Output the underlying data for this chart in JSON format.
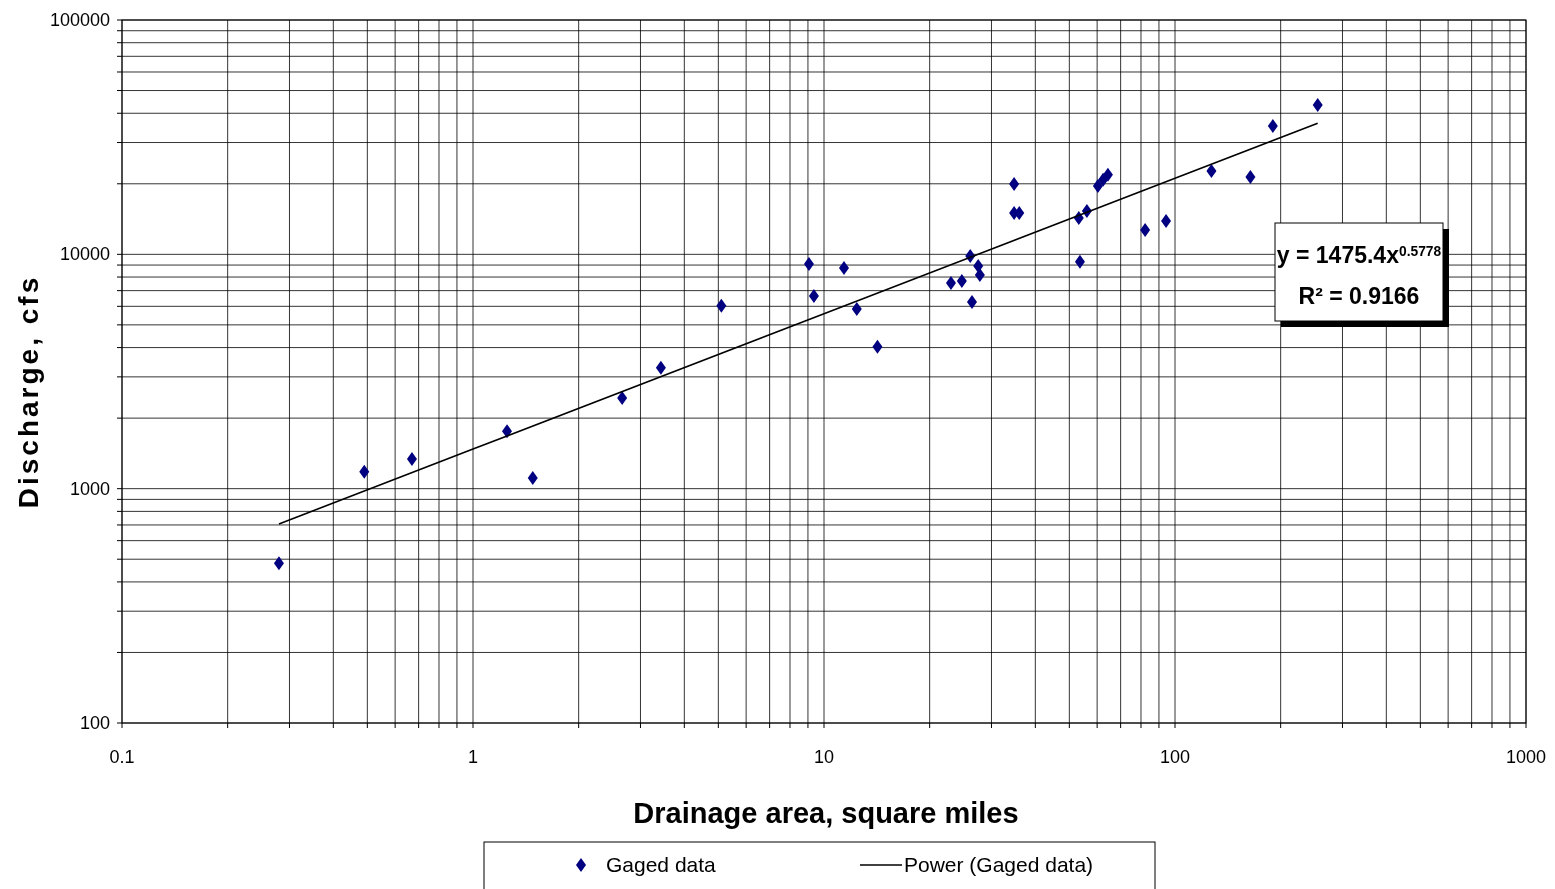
{
  "chart_data": {
    "type": "scatter",
    "xlabel": "Drainage area, square miles",
    "ylabel": "Discharge, cfs",
    "log": "xy",
    "grid": true,
    "legend": "bottom",
    "xlim": [
      0.1,
      1000
    ],
    "ylim": [
      100,
      100000
    ],
    "xticks": [
      0.1,
      {
        "value": 0.2,
        "label": null
      },
      {
        "value": 0.3,
        "label": null
      },
      {
        "value": 0.4,
        "label": null
      },
      {
        "value": 0.5,
        "label": null
      },
      {
        "value": 0.6,
        "label": null
      },
      {
        "value": 0.7,
        "label": null
      },
      {
        "value": 0.8,
        "label": null
      },
      {
        "value": 0.9,
        "label": null
      },
      1,
      {
        "value": 2,
        "label": null
      },
      {
        "value": 3,
        "label": null
      },
      {
        "value": 4,
        "label": null
      },
      {
        "value": 5,
        "label": null
      },
      {
        "value": 6,
        "label": null
      },
      {
        "value": 7,
        "label": null
      },
      {
        "value": 8,
        "label": null
      },
      {
        "value": 9,
        "label": null
      },
      10,
      {
        "value": 20,
        "label": null
      },
      {
        "value": 30,
        "label": null
      },
      {
        "value": 40,
        "label": null
      },
      {
        "value": 50,
        "label": null
      },
      {
        "value": 60,
        "label": null
      },
      {
        "value": 70,
        "label": null
      },
      {
        "value": 80,
        "label": null
      },
      {
        "value": 90,
        "label": null
      },
      100,
      {
        "value": 200,
        "label": null
      },
      {
        "value": 300,
        "label": null
      },
      {
        "value": 400,
        "label": null
      },
      {
        "value": 500,
        "label": null
      },
      {
        "value": 600,
        "label": null
      },
      {
        "value": 700,
        "label": null
      },
      {
        "value": 800,
        "label": null
      },
      {
        "value": 900,
        "label": null
      },
      1000
    ],
    "yticks": [
      100,
      {
        "value": 200,
        "label": null
      },
      {
        "value": 300,
        "label": null
      },
      {
        "value": 400,
        "label": null
      },
      {
        "value": 500,
        "label": null
      },
      {
        "value": 600,
        "label": null
      },
      {
        "value": 700,
        "label": null
      },
      {
        "value": 800,
        "label": null
      },
      {
        "value": 900,
        "label": null
      },
      1000,
      {
        "value": 2000,
        "label": null
      },
      {
        "value": 3000,
        "label": null
      },
      {
        "value": 4000,
        "label": null
      },
      {
        "value": 5000,
        "label": null
      },
      {
        "value": 6000,
        "label": null
      },
      {
        "value": 7000,
        "label": null
      },
      {
        "value": 8000,
        "label": null
      },
      {
        "value": 9000,
        "label": null
      },
      10000,
      {
        "value": 20000,
        "label": null
      },
      {
        "value": 30000,
        "label": null
      },
      {
        "value": 40000,
        "label": null
      },
      {
        "value": 50000,
        "label": null
      },
      {
        "value": 60000,
        "label": null
      },
      {
        "value": 70000,
        "label": null
      },
      {
        "value": 80000,
        "label": null
      },
      {
        "value": 90000,
        "label": null
      },
      100000
    ],
    "annotations": [
      "y = 1475.4x$^{0.5778}$",
      "R² = 0.9166"
    ],
    "series": [
      {
        "name": "Gaged data",
        "marker": "diamond",
        "color": "#000080",
        "x": [
          0.28,
          0.49,
          0.67,
          1.25,
          1.48,
          2.66,
          3.43,
          5.1,
          9.06,
          9.36,
          11.4,
          12.4,
          14.2,
          23,
          24.7,
          26.1,
          26.4,
          27.5,
          27.8,
          34.8,
          34.8,
          36,
          53.2,
          53.6,
          56.1,
          60.3,
          62.4,
          64.4,
          82.2,
          94.3,
          127,
          164,
          190,
          255
        ],
        "values": [
          480,
          1180,
          1340,
          1760,
          1110,
          2440,
          3280,
          6030,
          9100,
          6640,
          8750,
          5850,
          4030,
          7550,
          7700,
          9840,
          6260,
          8920,
          8160,
          19950,
          15000,
          15000,
          14300,
          9290,
          15300,
          19580,
          20800,
          21850,
          12700,
          13880,
          22700,
          21400,
          35300,
          43400
        ]
      },
      {
        "name": "Power (Gaged data)",
        "type": "line",
        "marker": "none",
        "line_style": "solid",
        "color": "#000000",
        "x": [
          0.28,
          1,
          10,
          100,
          255
        ],
        "values": [
          707,
          1475,
          5580,
          21100,
          36250
        ]
      }
    ]
  }
}
